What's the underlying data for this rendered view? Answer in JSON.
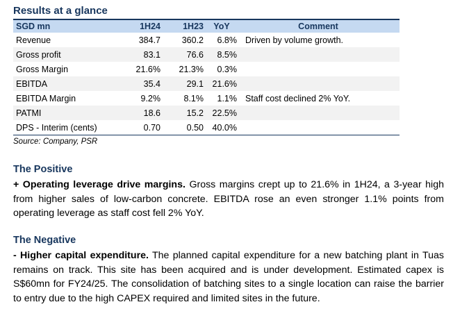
{
  "results": {
    "title": "Results at a glance",
    "columns": [
      "SGD mn",
      "1H24",
      "1H23",
      "YoY",
      "Comment"
    ],
    "rows": [
      {
        "metric": "Revenue",
        "h24": "384.7",
        "h23": "360.2",
        "yoy": "6.8%",
        "comment": "Driven by volume growth."
      },
      {
        "metric": "Gross profit",
        "h24": "83.1",
        "h23": "76.6",
        "yoy": "8.5%",
        "comment": ""
      },
      {
        "metric": "Gross Margin",
        "h24": "21.6%",
        "h23": "21.3%",
        "yoy": "0.3%",
        "comment": ""
      },
      {
        "metric": "EBITDA",
        "h24": "35.4",
        "h23": "29.1",
        "yoy": "21.6%",
        "comment": ""
      },
      {
        "metric": "EBITDA Margin",
        "h24": "9.2%",
        "h23": "8.1%",
        "yoy": "1.1%",
        "comment": "Staff cost declined 2% YoY."
      },
      {
        "metric": "PATMI",
        "h24": "18.6",
        "h23": "15.2",
        "yoy": "22.5%",
        "comment": ""
      },
      {
        "metric": "DPS - Interim (cents)",
        "h24": "0.70",
        "h23": "0.50",
        "yoy": "40.0%",
        "comment": ""
      }
    ],
    "source": "Source: Company, PSR"
  },
  "positive": {
    "heading": "The Positive",
    "lead": "+ Operating leverage drive margins.",
    "body": " Gross margins crept up to 21.6% in 1H24, a 3-year high from higher sales of low-carbon concrete. EBITDA rose an even stronger 1.1% points from operating leverage as staff cost fell 2% YoY."
  },
  "negative": {
    "heading": "The Negative",
    "lead": "- Higher capital expenditure.",
    "body": " The planned capital expenditure for a new batching plant in Tuas remains on track. This site has been acquired and is under development. Estimated capex is S$60mn for FY24/25. The consolidation of batching sites to a single location can raise the barrier to entry due to the high CAPEX required and limited sites in the future."
  },
  "colors": {
    "heading": "#17365d",
    "header_fill": "#c5d9f1",
    "stripe": "#f2f2f2"
  }
}
